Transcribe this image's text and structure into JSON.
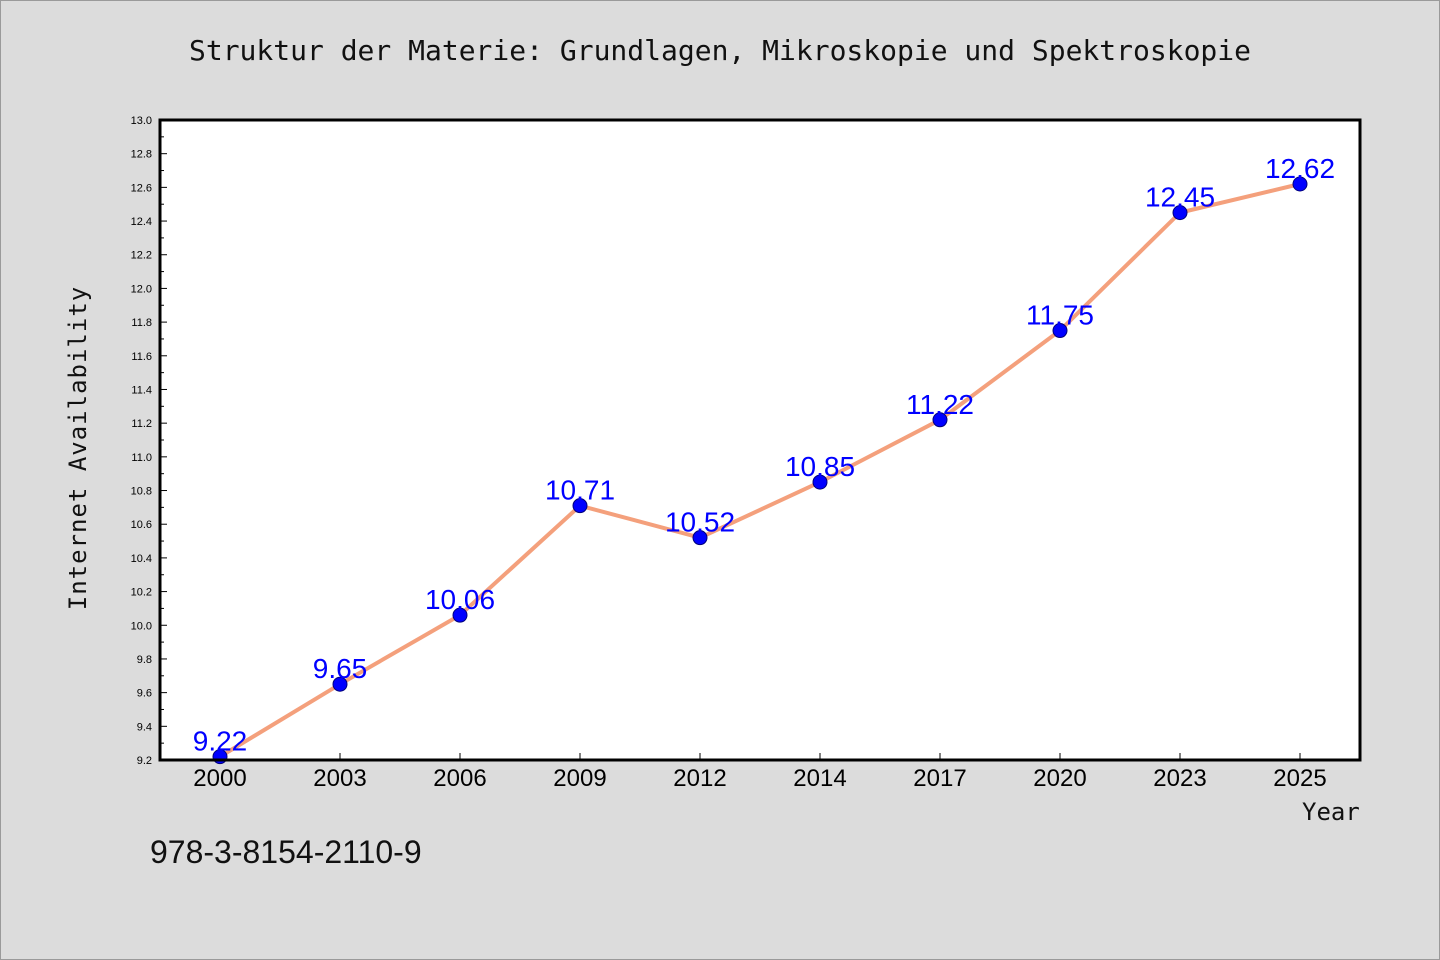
{
  "header": {
    "isbn": "978-3-8154-2110-9"
  },
  "chart_data": {
    "type": "line",
    "title": "Struktur der Materie: Grundlagen, Mikroskopie und Spektroskopie",
    "xlabel": "Year",
    "ylabel": "Internet Availability",
    "categories": [
      "2000",
      "2003",
      "2006",
      "2009",
      "2012",
      "2014",
      "2017",
      "2020",
      "2023",
      "2025"
    ],
    "values": [
      9.22,
      9.65,
      10.06,
      10.71,
      10.52,
      10.85,
      11.22,
      11.75,
      12.45,
      12.62
    ],
    "data_labels": [
      "9.22",
      "9.65",
      "10.06",
      "10.71",
      "10.52",
      "10.85",
      "11.22",
      "11.75",
      "12.45",
      "12.62"
    ],
    "ylim": [
      9.2,
      13.0
    ],
    "yticks": [
      "9.2",
      "9.4",
      "9.6",
      "9.8",
      "10.0",
      "10.2",
      "10.4",
      "10.6",
      "10.8",
      "11.0",
      "11.2",
      "11.4",
      "11.6",
      "11.8",
      "12.0",
      "12.2",
      "12.4",
      "12.6",
      "12.8",
      "13.0"
    ],
    "grid": false,
    "legend": "none",
    "line_color": "#f4a07c",
    "marker_color": "#0000ff",
    "label_color": "#0000ff"
  }
}
